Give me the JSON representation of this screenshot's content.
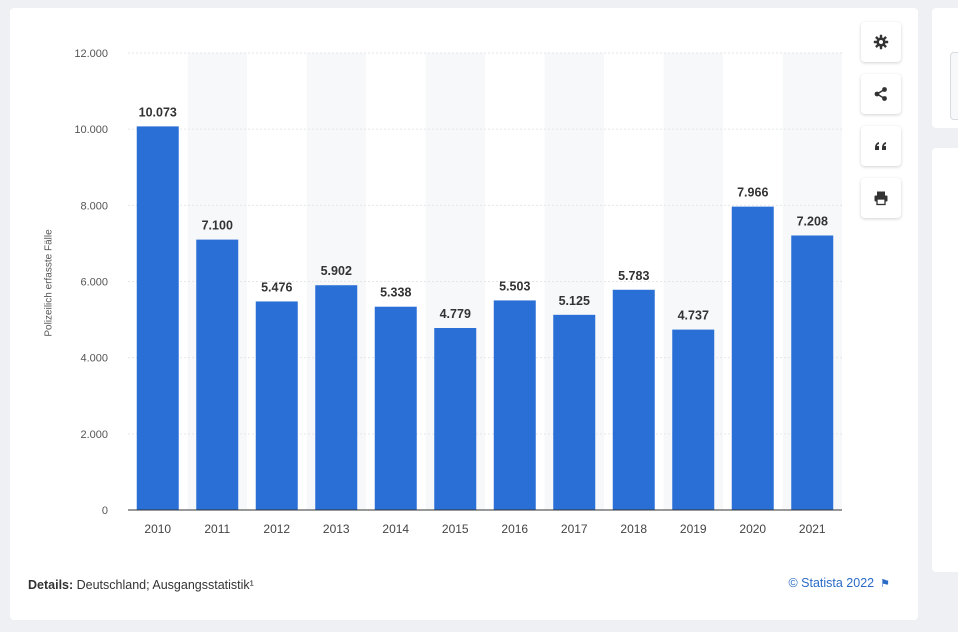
{
  "chart_data": {
    "type": "bar",
    "categories": [
      "2010",
      "2011",
      "2012",
      "2013",
      "2014",
      "2015",
      "2016",
      "2017",
      "2018",
      "2019",
      "2020",
      "2021"
    ],
    "values": [
      10073,
      7100,
      5476,
      5902,
      5338,
      4779,
      5503,
      5125,
      5783,
      4737,
      7966,
      7208
    ],
    "value_labels": [
      "10.073",
      "7.100",
      "5.476",
      "5.902",
      "5.338",
      "4.779",
      "5.503",
      "5.125",
      "5.783",
      "4.737",
      "7.966",
      "7.208"
    ],
    "ylabel": "Polizeilich erfasste Fälle",
    "ylim": [
      0,
      12000
    ],
    "yticks": [
      0,
      2000,
      4000,
      6000,
      8000,
      10000,
      12000
    ],
    "ytick_labels": [
      "0",
      "2.000",
      "4.000",
      "6.000",
      "8.000",
      "10.000",
      "12.000"
    ],
    "bar_color": "#2a6fd6",
    "grid": true
  },
  "tools": {
    "settings": "gear-icon",
    "share": "share-icon",
    "cite": "quote-icon",
    "print": "print-icon"
  },
  "footer": {
    "details_label": "Details:",
    "details_text": " Deutschland; Ausgangsstatistik¹",
    "copyright": "© Statista 2022"
  }
}
